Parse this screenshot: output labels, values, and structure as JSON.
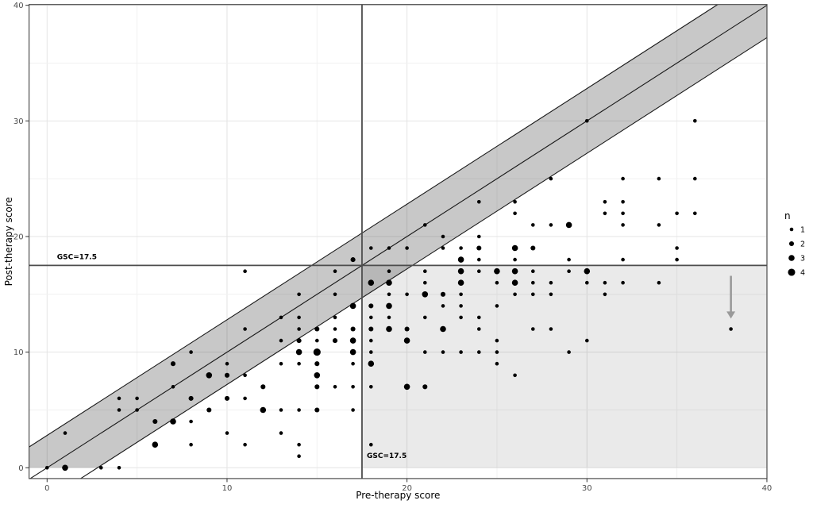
{
  "figure": {
    "background": "#ffffff",
    "panel_border_color": "#4d4d4d",
    "grid_major_color": "#e4e4e4",
    "grid_minor_color": "#f1f1f1"
  },
  "axes": {
    "x_title": "Pre-therapy score",
    "y_title": "Post-therapy score",
    "x_ticks": [
      0,
      10,
      20,
      30,
      40
    ],
    "y_ticks": [
      0,
      10,
      20,
      30,
      40
    ],
    "x_range": [
      0,
      40
    ],
    "y_range": [
      0,
      40
    ],
    "grid_step": 5
  },
  "reference": {
    "cutoff_value": 17.5,
    "pre_cutoff_label": "GSC=17.5",
    "post_cutoff_label": "GSC=17.5",
    "line_color": "#4d4d4d",
    "band_half_width": 2.8,
    "band_fill": "rgba(0,0,0,0.215)",
    "region_fill": "rgba(0,0,0,0.082)",
    "diagonal_line_color": "#1a1a1a"
  },
  "legend": {
    "title": "n",
    "items": [
      {
        "label": "1",
        "n": 1
      },
      {
        "label": "2",
        "n": 2
      },
      {
        "label": "3",
        "n": 3
      },
      {
        "label": "4",
        "n": 4
      }
    ]
  },
  "arrow": {
    "x": 38,
    "y_from": 16.6,
    "y_to": 12.9,
    "color": "#9a9a9a"
  },
  "chart_data": {
    "type": "scatter",
    "title": "",
    "xlabel": "Pre-therapy score",
    "ylabel": "Post-therapy score",
    "xlim": [
      0,
      40
    ],
    "ylim": [
      0,
      40
    ],
    "point_color": "#000000",
    "size_variable": "n",
    "identity_line": true,
    "agreement_band_half_width": 2.8,
    "points_format": [
      "pre_score",
      "post_score",
      "n"
    ],
    "points": [
      [
        0,
        0,
        1
      ],
      [
        1,
        0,
        3
      ],
      [
        3,
        0,
        1
      ],
      [
        4,
        0,
        1
      ],
      [
        14,
        1,
        1
      ],
      [
        6,
        2,
        3
      ],
      [
        8,
        2,
        1
      ],
      [
        11,
        2,
        1
      ],
      [
        14,
        2,
        1
      ],
      [
        18,
        2,
        1
      ],
      [
        1,
        3,
        1
      ],
      [
        10,
        3,
        1
      ],
      [
        13,
        3,
        1
      ],
      [
        6,
        4,
        2
      ],
      [
        7,
        4,
        3
      ],
      [
        8,
        4,
        1
      ],
      [
        4,
        5,
        1
      ],
      [
        5,
        5,
        1
      ],
      [
        9,
        5,
        2
      ],
      [
        12,
        5,
        3
      ],
      [
        13,
        5,
        1
      ],
      [
        14,
        5,
        1
      ],
      [
        15,
        5,
        2
      ],
      [
        17,
        5,
        1
      ],
      [
        4,
        6,
        1
      ],
      [
        5,
        6,
        1
      ],
      [
        8,
        6,
        2
      ],
      [
        10,
        6,
        2
      ],
      [
        11,
        6,
        1
      ],
      [
        7,
        7,
        1
      ],
      [
        12,
        7,
        2
      ],
      [
        15,
        7,
        2
      ],
      [
        16,
        7,
        1
      ],
      [
        17,
        7,
        1
      ],
      [
        18,
        7,
        1
      ],
      [
        20,
        7,
        3
      ],
      [
        21,
        7,
        2
      ],
      [
        9,
        8,
        3
      ],
      [
        10,
        8,
        2
      ],
      [
        11,
        8,
        1
      ],
      [
        15,
        8,
        3
      ],
      [
        26,
        8,
        1
      ],
      [
        7,
        9,
        2
      ],
      [
        10,
        9,
        1
      ],
      [
        13,
        9,
        1
      ],
      [
        14,
        9,
        1
      ],
      [
        15,
        9,
        2
      ],
      [
        17,
        9,
        1
      ],
      [
        18,
        9,
        3
      ],
      [
        25,
        9,
        1
      ],
      [
        8,
        10,
        1
      ],
      [
        14,
        10,
        3
      ],
      [
        15,
        10,
        4
      ],
      [
        17,
        10,
        3
      ],
      [
        18,
        10,
        1
      ],
      [
        21,
        10,
        1
      ],
      [
        22,
        10,
        1
      ],
      [
        23,
        10,
        1
      ],
      [
        24,
        10,
        1
      ],
      [
        25,
        10,
        1
      ],
      [
        29,
        10,
        1
      ],
      [
        13,
        11,
        1
      ],
      [
        14,
        11,
        2
      ],
      [
        15,
        11,
        1
      ],
      [
        16,
        11,
        2
      ],
      [
        17,
        11,
        3
      ],
      [
        18,
        11,
        1
      ],
      [
        20,
        11,
        3
      ],
      [
        25,
        11,
        1
      ],
      [
        30,
        11,
        1
      ],
      [
        11,
        12,
        1
      ],
      [
        14,
        12,
        1
      ],
      [
        15,
        12,
        2
      ],
      [
        16,
        12,
        1
      ],
      [
        17,
        12,
        2
      ],
      [
        18,
        12,
        2
      ],
      [
        19,
        12,
        3
      ],
      [
        20,
        12,
        2
      ],
      [
        22,
        12,
        3
      ],
      [
        24,
        12,
        1
      ],
      [
        27,
        12,
        1
      ],
      [
        28,
        12,
        1
      ],
      [
        38,
        12,
        1
      ],
      [
        13,
        13,
        1
      ],
      [
        14,
        13,
        1
      ],
      [
        16,
        13,
        1
      ],
      [
        18,
        13,
        1
      ],
      [
        19,
        13,
        1
      ],
      [
        21,
        13,
        1
      ],
      [
        23,
        13,
        1
      ],
      [
        24,
        13,
        1
      ],
      [
        17,
        14,
        3
      ],
      [
        18,
        14,
        2
      ],
      [
        19,
        14,
        3
      ],
      [
        22,
        14,
        1
      ],
      [
        23,
        14,
        1
      ],
      [
        25,
        14,
        1
      ],
      [
        14,
        15,
        1
      ],
      [
        16,
        15,
        1
      ],
      [
        19,
        15,
        1
      ],
      [
        20,
        15,
        1
      ],
      [
        21,
        15,
        3
      ],
      [
        22,
        15,
        2
      ],
      [
        23,
        15,
        1
      ],
      [
        26,
        15,
        1
      ],
      [
        27,
        15,
        1
      ],
      [
        28,
        15,
        1
      ],
      [
        31,
        15,
        1
      ],
      [
        18,
        16,
        3
      ],
      [
        19,
        16,
        3
      ],
      [
        21,
        16,
        1
      ],
      [
        23,
        16,
        3
      ],
      [
        25,
        16,
        1
      ],
      [
        26,
        16,
        3
      ],
      [
        27,
        16,
        1
      ],
      [
        28,
        16,
        1
      ],
      [
        30,
        16,
        1
      ],
      [
        31,
        16,
        1
      ],
      [
        32,
        16,
        1
      ],
      [
        34,
        16,
        1
      ],
      [
        11,
        17,
        1
      ],
      [
        16,
        17,
        1
      ],
      [
        19,
        17,
        1
      ],
      [
        21,
        17,
        1
      ],
      [
        23,
        17,
        3
      ],
      [
        24,
        17,
        1
      ],
      [
        25,
        17,
        3
      ],
      [
        26,
        17,
        3
      ],
      [
        27,
        17,
        1
      ],
      [
        29,
        17,
        1
      ],
      [
        30,
        17,
        3
      ],
      [
        17,
        18,
        2
      ],
      [
        23,
        18,
        3
      ],
      [
        24,
        18,
        1
      ],
      [
        26,
        18,
        1
      ],
      [
        29,
        18,
        1
      ],
      [
        32,
        18,
        1
      ],
      [
        35,
        18,
        1
      ],
      [
        18,
        19,
        1
      ],
      [
        19,
        19,
        1
      ],
      [
        20,
        19,
        1
      ],
      [
        22,
        19,
        1
      ],
      [
        23,
        19,
        1
      ],
      [
        24,
        19,
        2
      ],
      [
        26,
        19,
        3
      ],
      [
        27,
        19,
        2
      ],
      [
        35,
        19,
        1
      ],
      [
        22,
        20,
        1
      ],
      [
        24,
        20,
        1
      ],
      [
        21,
        21,
        1
      ],
      [
        27,
        21,
        1
      ],
      [
        28,
        21,
        1
      ],
      [
        29,
        21,
        3
      ],
      [
        32,
        21,
        1
      ],
      [
        34,
        21,
        1
      ],
      [
        26,
        22,
        1
      ],
      [
        31,
        22,
        1
      ],
      [
        32,
        22,
        1
      ],
      [
        35,
        22,
        1
      ],
      [
        36,
        22,
        1
      ],
      [
        24,
        23,
        1
      ],
      [
        26,
        23,
        1
      ],
      [
        31,
        23,
        1
      ],
      [
        32,
        23,
        1
      ],
      [
        28,
        25,
        1
      ],
      [
        32,
        25,
        1
      ],
      [
        34,
        25,
        1
      ],
      [
        36,
        25,
        1
      ],
      [
        30,
        30,
        1
      ],
      [
        36,
        30,
        1
      ]
    ]
  }
}
